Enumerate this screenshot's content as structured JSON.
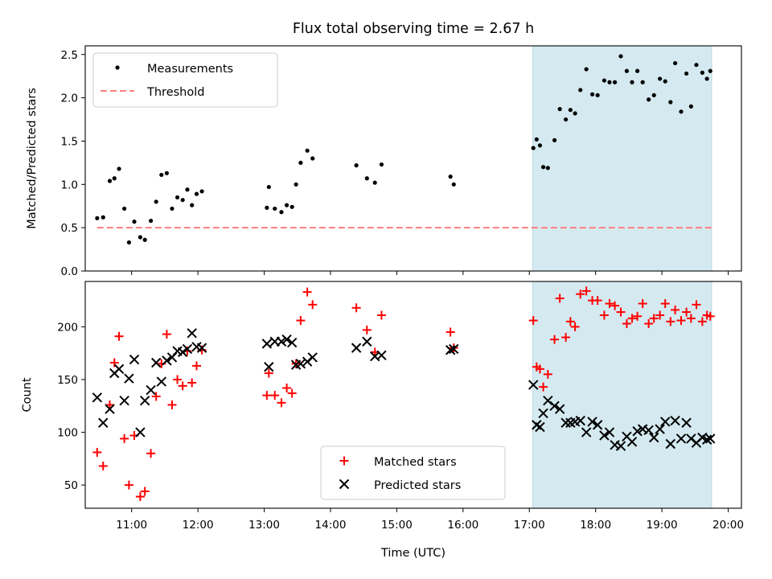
{
  "chart_data": [
    {
      "type": "scatter",
      "title": "Flux total observing time = 2.67 h",
      "ylabel": "Matched/Predicted stars",
      "xlabel": "",
      "ylim": [
        0,
        2.6
      ],
      "yticks": [
        0.0,
        0.5,
        1.0,
        1.5,
        2.0,
        2.5
      ],
      "ytick_labels": [
        "0.0",
        "0.5",
        "1.0",
        "1.5",
        "2.0",
        "2.5"
      ],
      "xlim_hours": [
        10.3,
        20.2
      ],
      "shaded_span_hours": [
        17.05,
        19.75
      ],
      "shade_color": "#d4eaf0",
      "legend_position": "upper left",
      "series": [
        {
          "name": "Measurements",
          "marker": "dot",
          "color": "#000000",
          "x": [
            10.48,
            10.57,
            10.67,
            10.74,
            10.81,
            10.89,
            10.96,
            11.04,
            11.13,
            11.2,
            11.29,
            11.37,
            11.45,
            11.53,
            11.61,
            11.69,
            11.77,
            11.84,
            11.91,
            11.98,
            12.06,
            13.04,
            13.07,
            13.16,
            13.26,
            13.34,
            13.42,
            13.48,
            13.55,
            13.65,
            13.73,
            14.39,
            14.55,
            14.67,
            14.77,
            15.81,
            15.86,
            17.06,
            17.11,
            17.16,
            17.21,
            17.28,
            17.38,
            17.46,
            17.55,
            17.62,
            17.69,
            17.77,
            17.86,
            17.95,
            18.03,
            18.13,
            18.21,
            18.29,
            18.38,
            18.47,
            18.55,
            18.63,
            18.71,
            18.8,
            18.88,
            18.97,
            19.05,
            19.13,
            19.2,
            19.29,
            19.37,
            19.44,
            19.52,
            19.61,
            19.68,
            19.73
          ],
          "y": [
            0.61,
            0.62,
            1.04,
            1.07,
            1.18,
            0.72,
            0.33,
            0.57,
            0.39,
            0.36,
            0.58,
            0.8,
            1.11,
            1.13,
            0.72,
            0.85,
            0.82,
            0.94,
            0.76,
            0.89,
            0.92,
            0.73,
            0.97,
            0.72,
            0.68,
            0.76,
            0.74,
            1.0,
            1.25,
            1.39,
            1.3,
            1.22,
            1.07,
            1.02,
            1.23,
            1.09,
            1.0,
            1.42,
            1.52,
            1.45,
            1.2,
            1.19,
            1.51,
            1.87,
            1.75,
            1.86,
            1.82,
            2.09,
            2.33,
            2.04,
            2.03,
            2.2,
            2.18,
            2.18,
            2.48,
            2.31,
            2.18,
            2.31,
            2.18,
            1.98,
            2.03,
            2.22,
            2.19,
            1.95,
            2.4,
            1.84,
            2.28,
            1.9,
            2.38,
            2.29,
            2.22,
            2.31
          ]
        },
        {
          "name": "Threshold",
          "marker": "dashed-line",
          "color": "#ff7f7f",
          "x": [
            10.48,
            19.75
          ],
          "y": [
            0.5,
            0.5
          ]
        }
      ]
    },
    {
      "type": "scatter",
      "ylabel": "Count",
      "xlabel": "Time (UTC)",
      "ylim": [
        28,
        243
      ],
      "yticks": [
        50,
        100,
        150,
        200
      ],
      "ytick_labels": [
        "50",
        "100",
        "150",
        "200"
      ],
      "xlim_hours": [
        10.3,
        20.2
      ],
      "xticks_hours": [
        11,
        12,
        13,
        14,
        15,
        16,
        17,
        18,
        19,
        20
      ],
      "xtick_labels": [
        "11:00",
        "12:00",
        "13:00",
        "14:00",
        "15:00",
        "16:00",
        "17:00",
        "18:00",
        "19:00",
        "20:00"
      ],
      "shaded_span_hours": [
        17.05,
        19.75
      ],
      "legend_position": "lower center",
      "series": [
        {
          "name": "Matched stars",
          "marker": "plus",
          "color": "#ff0000",
          "x": [
            10.48,
            10.57,
            10.67,
            10.74,
            10.81,
            10.89,
            10.96,
            11.04,
            11.13,
            11.2,
            11.29,
            11.37,
            11.45,
            11.53,
            11.61,
            11.69,
            11.77,
            11.84,
            11.91,
            11.98,
            12.06,
            13.04,
            13.07,
            13.16,
            13.26,
            13.34,
            13.42,
            13.48,
            13.55,
            13.65,
            13.73,
            14.39,
            14.55,
            14.67,
            14.77,
            15.81,
            15.86,
            17.06,
            17.11,
            17.16,
            17.21,
            17.28,
            17.38,
            17.46,
            17.55,
            17.62,
            17.69,
            17.77,
            17.86,
            17.95,
            18.03,
            18.13,
            18.21,
            18.29,
            18.38,
            18.47,
            18.55,
            18.63,
            18.71,
            18.8,
            18.88,
            18.97,
            19.05,
            19.13,
            19.2,
            19.29,
            19.37,
            19.44,
            19.52,
            19.61,
            19.68,
            19.73
          ],
          "y": [
            81,
            68,
            126,
            166,
            191,
            94,
            50,
            97,
            39,
            44,
            80,
            134,
            165,
            193,
            126,
            150,
            144,
            177,
            147,
            163,
            178,
            135,
            156,
            135,
            128,
            142,
            137,
            165,
            206,
            233,
            221,
            218,
            197,
            176,
            211,
            195,
            180,
            206,
            162,
            160,
            143,
            155,
            188,
            227,
            190,
            205,
            200,
            231,
            234,
            225,
            225,
            211,
            222,
            220,
            214,
            203,
            208,
            210,
            222,
            203,
            208,
            211,
            222,
            205,
            216,
            206,
            214,
            208,
            221,
            205,
            211,
            210
          ]
        },
        {
          "name": "Predicted stars",
          "marker": "x",
          "color": "#000000",
          "x": [
            10.48,
            10.57,
            10.67,
            10.74,
            10.81,
            10.89,
            10.96,
            11.04,
            11.13,
            11.2,
            11.29,
            11.37,
            11.45,
            11.53,
            11.61,
            11.69,
            11.77,
            11.84,
            11.91,
            11.98,
            12.06,
            13.04,
            13.07,
            13.16,
            13.26,
            13.34,
            13.42,
            13.48,
            13.55,
            13.65,
            13.73,
            14.39,
            14.55,
            14.67,
            14.77,
            15.81,
            15.86,
            17.06,
            17.11,
            17.16,
            17.21,
            17.28,
            17.38,
            17.46,
            17.55,
            17.62,
            17.69,
            17.77,
            17.86,
            17.95,
            18.03,
            18.13,
            18.21,
            18.29,
            18.38,
            18.47,
            18.55,
            18.63,
            18.71,
            18.8,
            18.88,
            18.97,
            19.05,
            19.13,
            19.2,
            19.29,
            19.37,
            19.44,
            19.52,
            19.61,
            19.68,
            19.73
          ],
          "y": [
            133,
            109,
            122,
            156,
            160,
            130,
            151,
            169,
            100,
            130,
            140,
            166,
            148,
            168,
            171,
            177,
            176,
            179,
            194,
            181,
            180,
            184,
            162,
            186,
            186,
            188,
            185,
            164,
            165,
            167,
            171,
            180,
            186,
            172,
            173,
            178,
            179,
            145,
            107,
            105,
            118,
            130,
            125,
            122,
            109,
            109,
            110,
            111,
            100,
            110,
            107,
            97,
            100,
            88,
            87,
            96,
            91,
            101,
            103,
            102,
            95,
            103,
            110,
            89,
            111,
            94,
            109,
            94,
            90,
            95,
            93,
            94
          ]
        }
      ]
    }
  ]
}
